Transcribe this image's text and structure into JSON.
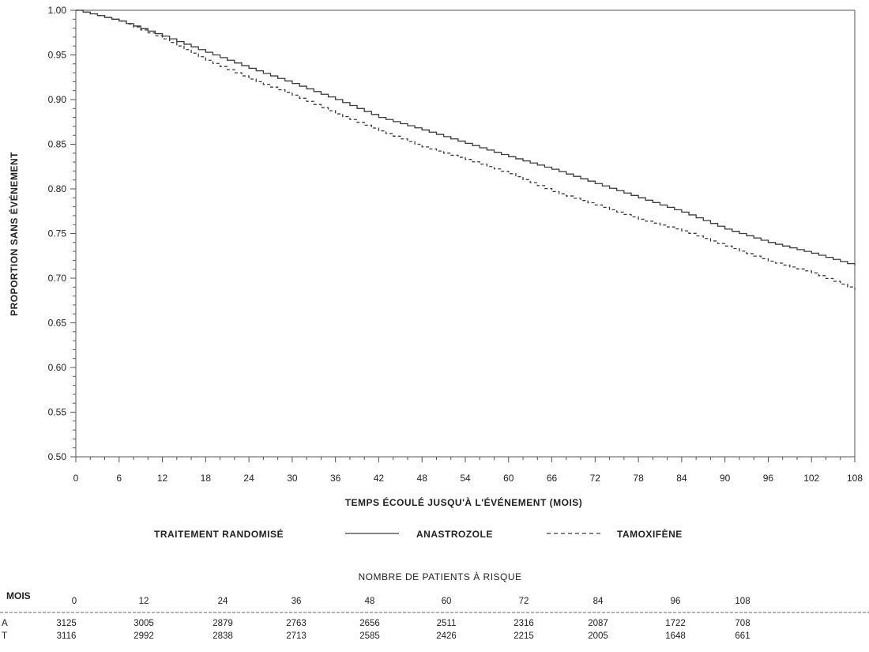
{
  "chart_data": {
    "type": "line",
    "xlabel": "TEMPS ÉCOULÉ JUSQU'À L'ÉVÉNEMENT (MOIS)",
    "ylabel": "PROPORTION SANS ÉVÉNEMENT",
    "xlim": [
      0,
      108
    ],
    "ylim": [
      0.5,
      1.0
    ],
    "x_ticks": [
      "0",
      "6",
      "12",
      "18",
      "24",
      "30",
      "36",
      "42",
      "48",
      "54",
      "60",
      "66",
      "72",
      "78",
      "84",
      "90",
      "96",
      "102",
      "108"
    ],
    "y_ticks": [
      "0.50",
      "0.55",
      "0.60",
      "0.65",
      "0.70",
      "0.75",
      "0.80",
      "0.85",
      "0.90",
      "0.95",
      "1.00"
    ],
    "grid": false,
    "legend": {
      "title": "TRAITEMENT RANDOMISÉ",
      "placement": "below"
    },
    "series": [
      {
        "name": "ANASTROZOLE",
        "style": "solid",
        "x": [
          0,
          6,
          12,
          18,
          24,
          30,
          36,
          42,
          48,
          54,
          60,
          66,
          72,
          78,
          84,
          90,
          96,
          102,
          108
        ],
        "y": [
          1.0,
          0.988,
          0.971,
          0.953,
          0.935,
          0.918,
          0.9,
          0.88,
          0.866,
          0.851,
          0.836,
          0.822,
          0.806,
          0.79,
          0.774,
          0.755,
          0.74,
          0.728,
          0.714
        ]
      },
      {
        "name": "TAMOXIFÈNE",
        "style": "dashed",
        "x": [
          0,
          6,
          12,
          18,
          24,
          30,
          36,
          42,
          48,
          54,
          60,
          66,
          72,
          78,
          84,
          90,
          96,
          102,
          108
        ],
        "y": [
          1.0,
          0.988,
          0.968,
          0.944,
          0.923,
          0.905,
          0.884,
          0.865,
          0.847,
          0.833,
          0.817,
          0.797,
          0.782,
          0.766,
          0.753,
          0.736,
          0.719,
          0.706,
          0.687
        ]
      }
    ]
  },
  "risk_table": {
    "title": "NOMBRE DE PATIENTS À RISQUE",
    "header_label": "MOIS",
    "months": [
      "0",
      "12",
      "24",
      "36",
      "48",
      "60",
      "72",
      "84",
      "96",
      "108"
    ],
    "rows": [
      {
        "label": "A",
        "values": [
          "3125",
          "3005",
          "2879",
          "2763",
          "2656",
          "2511",
          "2316",
          "2087",
          "1722",
          "708"
        ]
      },
      {
        "label": "T",
        "values": [
          "3116",
          "2992",
          "2838",
          "2713",
          "2585",
          "2426",
          "2215",
          "2005",
          "1648",
          "661"
        ]
      }
    ]
  },
  "colors": {
    "line": "#3a3a3a",
    "axis": "#555555",
    "text": "#222222"
  }
}
